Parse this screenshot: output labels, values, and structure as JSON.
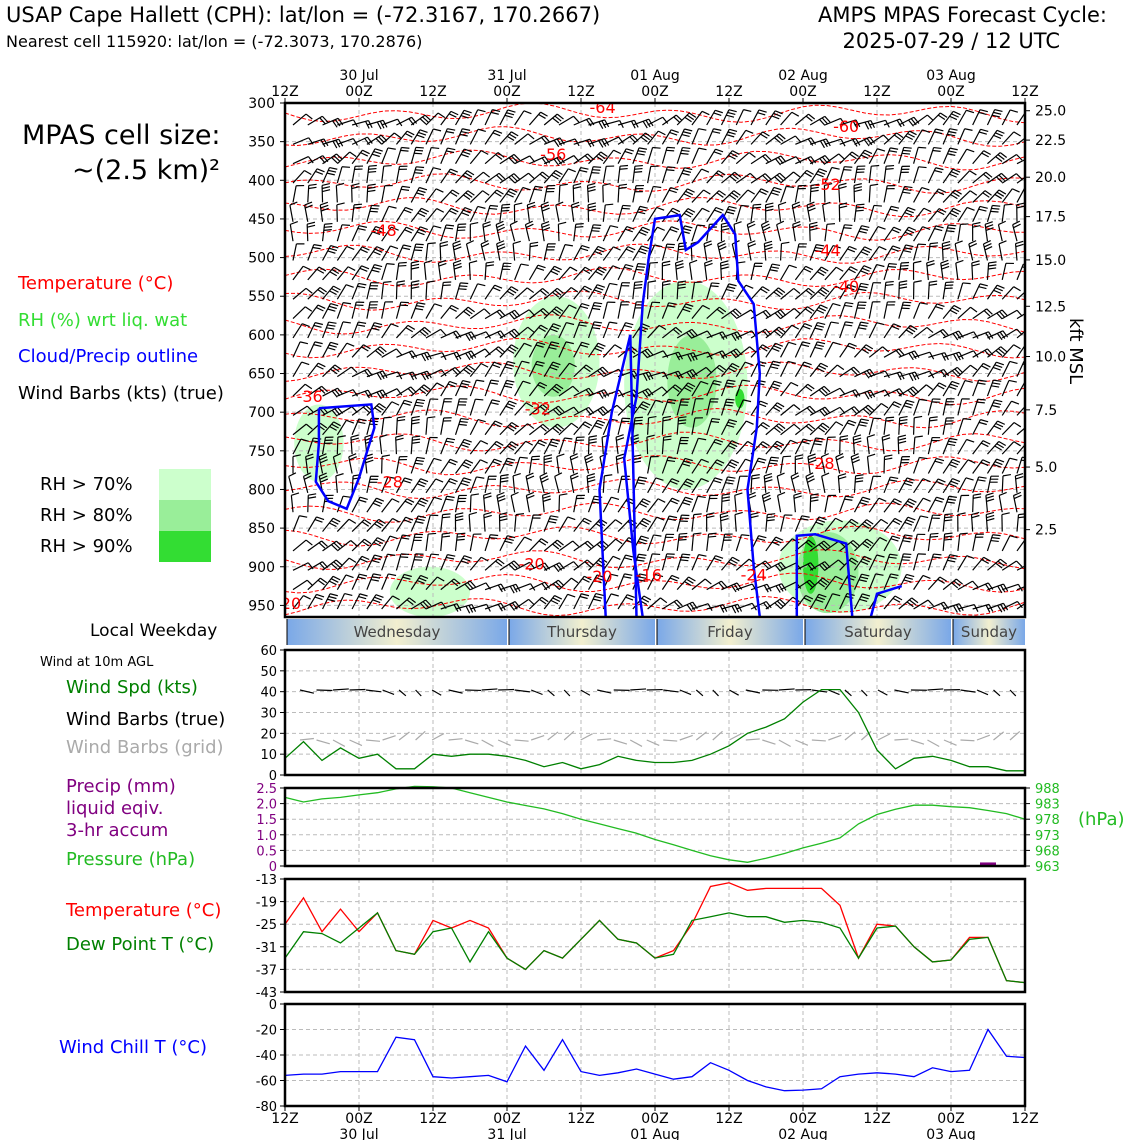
{
  "header": {
    "title": "USAP Cape Hallett (CPH): lat/lon = (-72.3167, 170.2667)",
    "subtitle": "Nearest cell 115920: lat/lon = (-72.3073, 170.2876)",
    "forecast_title": "AMPS MPAS Forecast Cycle:",
    "forecast_cycle": "2025-07-29 / 12 UTC"
  },
  "side": {
    "cell_size_line1": "MPAS cell size:",
    "cell_size_line2": "~(2.5 km)²",
    "legend_temperature": "Temperature (°C)",
    "legend_rh": "RH (%) wrt liq. wat",
    "legend_cloud": "Cloud/Precip outline",
    "legend_barbs": "Wind Barbs (kts) (true)",
    "rh_levels": [
      "RH > 70%",
      "RH > 80%",
      "RH > 90%"
    ],
    "rh_colors": [
      "#ccffcc",
      "#99ee99",
      "#33dd33"
    ],
    "local_weekday": "Local Weekday",
    "wind_10m": "Wind at 10m AGL",
    "wind_speed": "Wind Spd (kts)",
    "wind_barbs_true": "Wind Barbs (true)",
    "wind_barbs_grid": "Wind Barbs (grid)",
    "precip_line1": "Precip (mm)",
    "precip_line2": "liquid eqiv.",
    "precip_line3": "3-hr accum",
    "pressure": "Pressure (hPa)",
    "pressure_unit": "(hPa)",
    "temperature": "Temperature (°C)",
    "dew_point": "Dew Point T (°C)",
    "wind_chill": "Wind Chill T (°C)",
    "kft_msl": "kft MSL"
  },
  "colors": {
    "temperature": "#ff0000",
    "dew_point": "#008000",
    "wind_speed": "#008000",
    "pressure": "#22bb22",
    "precip": "#800080",
    "wind_chill": "#0000ff",
    "cloud_outline": "#0000ff",
    "barb_grid": "#aaaaaa"
  },
  "chart_data": [
    {
      "type": "heatmap",
      "name": "time-height cross-section",
      "x_top_ticks": [
        "12Z",
        "00Z",
        "12Z",
        "00Z",
        "12Z",
        "00Z",
        "12Z",
        "00Z",
        "12Z",
        "00Z",
        "12Z"
      ],
      "x_top_dates": [
        "30 Jul",
        "31 Jul",
        "01 Aug",
        "02 Aug",
        "03 Aug"
      ],
      "y_left_ticks": [
        300,
        350,
        400,
        450,
        500,
        550,
        600,
        650,
        700,
        750,
        800,
        850,
        900,
        950
      ],
      "y_right_ticks": [
        "25.0",
        "22.5",
        "20.0",
        "17.5",
        "15.0",
        "12.5",
        "10.0",
        "7.5",
        "5.0",
        "2.5"
      ],
      "y_right_pressures": [
        310,
        348,
        396,
        447,
        503,
        563,
        628,
        697,
        771,
        852
      ],
      "ylim": [
        300,
        965
      ],
      "temperature_contour_labels": [
        {
          "value": "-64",
          "t": 51.5,
          "p": 305
        },
        {
          "value": "-60",
          "t": 91,
          "p": 330
        },
        {
          "value": "-56",
          "t": 43.5,
          "p": 366
        },
        {
          "value": "-52",
          "t": 88,
          "p": 405
        },
        {
          "value": "-48",
          "t": 16,
          "p": 464
        },
        {
          "value": "-44",
          "t": 88,
          "p": 490
        },
        {
          "value": "-40",
          "t": 91,
          "p": 537
        },
        {
          "value": "-36",
          "t": 4,
          "p": 679
        },
        {
          "value": "-32",
          "t": 41,
          "p": 695
        },
        {
          "value": "-28",
          "t": 17,
          "p": 790
        },
        {
          "value": "-28",
          "t": 87,
          "p": 766
        },
        {
          "value": "-20",
          "t": 40,
          "p": 896
        },
        {
          "value": "-20",
          "t": 51,
          "p": 912
        },
        {
          "value": "-16",
          "t": 59,
          "p": 910
        },
        {
          "value": "-24",
          "t": 76,
          "p": 910
        },
        {
          "value": "-20",
          "t": 0.5,
          "p": 947
        }
      ],
      "rh_regions": [
        {
          "level": 70,
          "t0": 37,
          "t1": 51,
          "p0": 550,
          "p1": 720
        },
        {
          "level": 80,
          "t0": 40,
          "t1": 47,
          "p0": 600,
          "p1": 680
        },
        {
          "level": 70,
          "t0": 55,
          "t1": 75,
          "p0": 530,
          "p1": 800
        },
        {
          "level": 80,
          "t0": 62,
          "t1": 70,
          "p0": 600,
          "p1": 720
        },
        {
          "level": 90,
          "t0": 73,
          "t1": 74.5,
          "p0": 670,
          "p1": 695
        },
        {
          "level": 70,
          "t0": 1.5,
          "t1": 9.5,
          "p0": 690,
          "p1": 790
        },
        {
          "level": 70,
          "t0": 80,
          "t1": 100,
          "p0": 840,
          "p1": 960
        },
        {
          "level": 80,
          "t0": 83,
          "t1": 93,
          "p0": 855,
          "p1": 960
        },
        {
          "level": 90,
          "t0": 84,
          "t1": 86.5,
          "p0": 860,
          "p1": 935
        },
        {
          "level": 70,
          "t0": 17,
          "t1": 30,
          "p0": 900,
          "p1": 965
        }
      ],
      "cloud_outlines": [
        [
          [
            5.5,
            695
          ],
          [
            14,
            690
          ],
          [
            14.5,
            720
          ],
          [
            12,
            785
          ],
          [
            10,
            825
          ],
          [
            7,
            815
          ],
          [
            5,
            790
          ],
          [
            5.5,
            740
          ],
          [
            5.5,
            695
          ]
        ],
        [
          [
            58,
            965
          ],
          [
            56.5,
            880
          ],
          [
            55,
            760
          ],
          [
            57,
            680
          ],
          [
            58,
            560
          ],
          [
            59,
            500
          ],
          [
            60,
            450
          ],
          [
            64,
            445
          ],
          [
            65,
            490
          ],
          [
            67,
            480
          ],
          [
            71,
            445
          ],
          [
            73,
            470
          ],
          [
            73.5,
            530
          ],
          [
            76,
            560
          ],
          [
            77,
            650
          ],
          [
            76.5,
            720
          ],
          [
            75,
            800
          ],
          [
            76,
            900
          ],
          [
            77,
            965
          ]
        ],
        [
          [
            52,
            965
          ],
          [
            51,
            800
          ],
          [
            53,
            700
          ],
          [
            56,
            600
          ],
          [
            57,
            965
          ]
        ],
        [
          [
            83,
            965
          ],
          [
            83,
            860
          ],
          [
            86,
            858
          ],
          [
            91,
            870
          ],
          [
            92,
            965
          ]
        ],
        [
          [
            95,
            965
          ],
          [
            96,
            935
          ],
          [
            100,
            925
          ]
        ]
      ]
    },
    {
      "type": "table",
      "name": "local weekday",
      "days": [
        "Wednesday",
        "Thursday",
        "Friday",
        "Saturday",
        "Sunday"
      ]
    },
    {
      "type": "line",
      "name": "wind speed 10m",
      "x_hours": [
        0,
        3,
        6,
        9,
        12,
        15,
        18,
        21,
        24,
        27,
        30,
        33,
        36,
        39,
        42,
        45,
        48,
        51,
        54,
        57,
        60,
        63,
        66,
        69,
        72,
        75,
        78,
        81,
        84,
        87,
        90,
        93,
        96,
        99,
        102,
        105,
        108,
        111,
        114,
        117,
        120
      ],
      "values": [
        8,
        16,
        7,
        13,
        8,
        10,
        3,
        3,
        10,
        9,
        10,
        10,
        9,
        7,
        4,
        6,
        3,
        5,
        9,
        7,
        6,
        6,
        7,
        10,
        14,
        20,
        23,
        27,
        35,
        41,
        41,
        30,
        12,
        3,
        8,
        9,
        7,
        4,
        4,
        2,
        2
      ],
      "ylim": [
        0,
        60
      ],
      "yticks": [
        0,
        10,
        20,
        30,
        40,
        50,
        60
      ]
    },
    {
      "type": "line",
      "name": "pressure",
      "x_hours": [
        0,
        3,
        6,
        9,
        12,
        15,
        18,
        21,
        24,
        27,
        30,
        33,
        36,
        39,
        42,
        45,
        48,
        51,
        54,
        57,
        60,
        63,
        66,
        69,
        72,
        75,
        78,
        81,
        84,
        87,
        90,
        93,
        96,
        99,
        102,
        105,
        108,
        111,
        114,
        117,
        120
      ],
      "values": [
        985,
        983.5,
        984.5,
        985,
        985.8,
        986.5,
        987.7,
        988.5,
        988.4,
        988,
        986.5,
        985,
        983.5,
        982.4,
        981.3,
        979.8,
        978,
        976.5,
        975,
        973.5,
        971.5,
        969.8,
        968,
        966.3,
        965,
        964.2,
        965.5,
        967,
        968.8,
        970.3,
        972,
        976.5,
        979.5,
        981.2,
        982.5,
        982.5,
        982,
        981.7,
        980.8,
        979.8,
        978
      ],
      "ylim": [
        963,
        988
      ],
      "yticks_right": [
        963,
        968,
        973,
        978,
        983,
        988
      ],
      "precip_yticks": [
        0,
        0.5,
        1.0,
        1.5,
        2.0,
        2.5
      ],
      "precip_values": [
        {
          "x": 114,
          "value": 0.05
        }
      ]
    },
    {
      "type": "line",
      "name": "temperature and dew point",
      "x_hours": [
        0,
        3,
        6,
        9,
        12,
        15,
        18,
        21,
        24,
        27,
        30,
        33,
        36,
        39,
        42,
        45,
        48,
        51,
        54,
        57,
        60,
        63,
        66,
        69,
        72,
        75,
        78,
        81,
        84,
        87,
        90,
        93,
        96,
        99,
        102,
        105,
        108,
        111,
        114,
        117,
        120
      ],
      "series": [
        {
          "name": "Temperature (°C)",
          "values": [
            -25,
            -18,
            -27,
            -21,
            -27,
            -22,
            -32,
            -33,
            -24,
            -26,
            -24,
            -26,
            -34,
            -37,
            -32,
            -34,
            -29,
            -24,
            -29,
            -30,
            -34,
            -32,
            -25,
            -15,
            -14,
            -16,
            -15.5,
            -15.5,
            -15.5,
            -15.5,
            -20,
            -34,
            -25,
            -25.5,
            -31,
            -35,
            -34.5,
            -28.5,
            -28.5,
            -40,
            -40.5
          ]
        },
        {
          "name": "Dew Point T (°C)",
          "values": [
            -34,
            -27,
            -27.5,
            -30,
            -26,
            -22,
            -32,
            -33,
            -27,
            -26,
            -35,
            -27,
            -34,
            -37,
            -32,
            -34,
            -29,
            -24,
            -29,
            -30,
            -34,
            -33,
            -24,
            -23,
            -22,
            -23,
            -23,
            -24.5,
            -24,
            -24.5,
            -26,
            -34,
            -26,
            -25.5,
            -31,
            -35,
            -34.5,
            -29,
            -28.5,
            -40,
            -40.5
          ]
        }
      ],
      "ylim": [
        -43,
        -13
      ],
      "yticks": [
        -13,
        -19,
        -25,
        -31,
        -37,
        -43
      ]
    },
    {
      "type": "line",
      "name": "wind chill",
      "x_hours": [
        0,
        3,
        6,
        9,
        12,
        15,
        18,
        21,
        24,
        27,
        30,
        33,
        36,
        39,
        42,
        45,
        48,
        51,
        54,
        57,
        60,
        63,
        66,
        69,
        72,
        75,
        78,
        81,
        84,
        87,
        90,
        93,
        96,
        99,
        102,
        105,
        108,
        111,
        114,
        117,
        120
      ],
      "values": [
        -56,
        -55,
        -55,
        -53,
        -53,
        -53,
        -26,
        -28,
        -57,
        -58,
        -57,
        -56,
        -61,
        -33,
        -52,
        -28,
        -53,
        -56,
        -54,
        -51,
        -55,
        -59,
        -57,
        -46,
        -52,
        -60,
        -65,
        -68,
        -67.5,
        -66.5,
        -57,
        -55,
        -54,
        -55,
        -57,
        -50,
        -53,
        -52,
        -20,
        -41,
        -42
      ],
      "ylim": [
        -80,
        0
      ],
      "yticks": [
        0,
        -20,
        -40,
        -60,
        -80
      ]
    }
  ],
  "x_axis_bottom": {
    "ticks": [
      "12Z",
      "00Z",
      "12Z",
      "00Z",
      "12Z",
      "00Z",
      "12Z",
      "00Z",
      "12Z",
      "00Z",
      "12Z"
    ],
    "dates": [
      "30 Jul",
      "31 Jul",
      "01 Aug",
      "02 Aug",
      "03 Aug"
    ]
  }
}
